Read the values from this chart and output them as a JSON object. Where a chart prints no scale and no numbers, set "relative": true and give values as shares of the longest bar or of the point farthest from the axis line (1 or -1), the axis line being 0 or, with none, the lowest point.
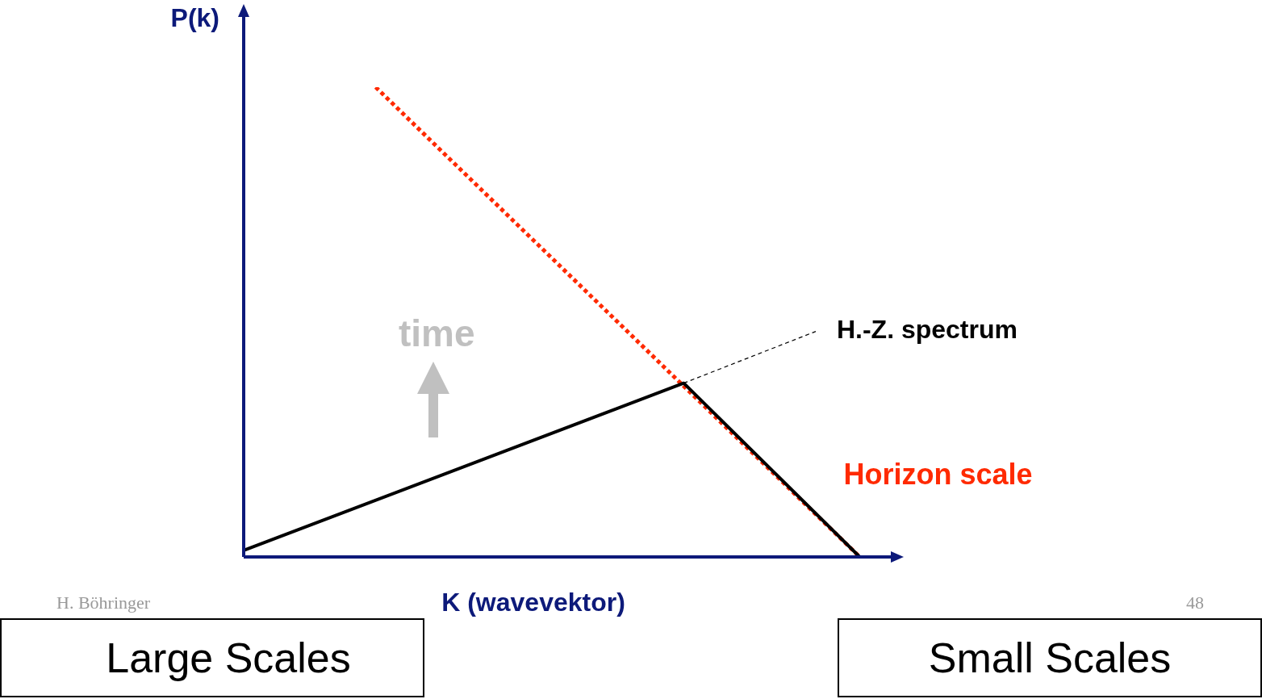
{
  "chart_data": {
    "type": "line",
    "relative": true,
    "xlabel": "K (wavevektor)",
    "ylabel": "P(k)",
    "categories": [
      null,
      null,
      null,
      null,
      null,
      null,
      null,
      null,
      null,
      null,
      null,
      null,
      null,
      null,
      null,
      null,
      null,
      null,
      null,
      null,
      null,
      null,
      null,
      null,
      null,
      null,
      null,
      null,
      null,
      null,
      null
    ],
    "series": [
      {
        "color": "#000000",
        "line_style": "solid",
        "values": [
          0.014,
          null,
          null,
          null,
          null,
          null,
          null,
          null,
          null,
          null,
          null,
          null,
          null,
          null,
          null,
          null,
          null,
          null,
          null,
          null,
          0.37,
          null,
          null,
          null,
          null,
          null,
          null,
          null,
          0,
          null,
          null
        ]
      },
      {
        "name": "Horizon scale",
        "color": "#ff2a00",
        "line_style": "dotted",
        "values": [
          null,
          null,
          null,
          null,
          null,
          null,
          1,
          null,
          null,
          null,
          null,
          null,
          null,
          null,
          null,
          null,
          null,
          null,
          null,
          null,
          null,
          null,
          null,
          null,
          null,
          null,
          null,
          null,
          0,
          null,
          null
        ]
      },
      {
        "name": "H.-Z. spectrum",
        "color": "#000000",
        "line_style": "dotted",
        "values": [
          null,
          null,
          null,
          null,
          null,
          null,
          null,
          null,
          null,
          null,
          null,
          null,
          null,
          null,
          null,
          null,
          null,
          null,
          null,
          null,
          0.37,
          null,
          null,
          null,
          null,
          null,
          0.48,
          null,
          null,
          null,
          null
        ]
      }
    ],
    "annotations": [
      "time",
      "Large Scales",
      "Small Scales",
      "H. Böhringer",
      "48"
    ],
    "legend": false,
    "grid": false,
    "tick_labels": false,
    "marker": "none"
  }
}
